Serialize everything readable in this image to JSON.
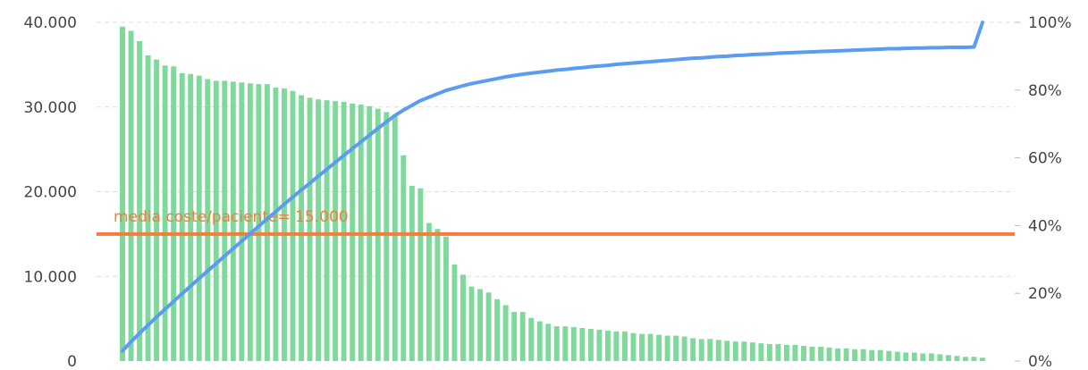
{
  "chart_data": {
    "type": "bar",
    "title": "",
    "xlabel": "",
    "ylabel": "",
    "ylim": [
      0,
      40000
    ],
    "y2lim": [
      0,
      100
    ],
    "grid": "horizontal dashed",
    "y_ticks": [
      "0",
      "10.000",
      "20.000",
      "30.000",
      "40.000"
    ],
    "y2_ticks": [
      "0%",
      "20%",
      "40%",
      "60%",
      "80%",
      "100%"
    ],
    "series": [
      {
        "type": "bar",
        "axis": "left",
        "color": "#7fd99a",
        "values": [
          39500,
          39000,
          37800,
          36100,
          35600,
          34900,
          34800,
          34000,
          33900,
          33700,
          33300,
          33100,
          33100,
          33000,
          32900,
          32800,
          32700,
          32700,
          32300,
          32200,
          31900,
          31400,
          31100,
          30900,
          30800,
          30700,
          30600,
          30400,
          30300,
          30100,
          29800,
          29400,
          29100,
          24300,
          20700,
          20400,
          16300,
          15600,
          14700,
          11400,
          10200,
          8800,
          8500,
          8100,
          7300,
          6600,
          5800,
          5800,
          5100,
          4700,
          4400,
          4100,
          4100,
          4000,
          3900,
          3800,
          3700,
          3600,
          3500,
          3500,
          3300,
          3200,
          3200,
          3100,
          3000,
          3000,
          2900,
          2700,
          2600,
          2600,
          2500,
          2400,
          2300,
          2300,
          2200,
          2100,
          2000,
          2000,
          1900,
          1900,
          1800,
          1700,
          1700,
          1600,
          1500,
          1500,
          1400,
          1400,
          1300,
          1300,
          1200,
          1100,
          1000,
          1000,
          900,
          900,
          800,
          700,
          600,
          500,
          500,
          400
        ]
      },
      {
        "type": "line",
        "axis": "right",
        "color": "#5a9cf0",
        "values": [
          3.0,
          5.7,
          8.2,
          10.6,
          13.0,
          15.3,
          17.6,
          19.9,
          22.1,
          24.4,
          26.6,
          28.8,
          31.0,
          33.2,
          35.4,
          37.6,
          39.8,
          42.0,
          44.1,
          46.3,
          48.4,
          50.5,
          52.5,
          54.6,
          56.6,
          58.7,
          60.7,
          62.7,
          64.7,
          66.7,
          68.7,
          70.6,
          72.5,
          74.1,
          75.5,
          76.9,
          77.9,
          78.9,
          79.9,
          80.6,
          81.3,
          81.9,
          82.4,
          82.9,
          83.4,
          83.9,
          84.3,
          84.7,
          85.0,
          85.3,
          85.6,
          85.9,
          86.1,
          86.4,
          86.6,
          86.9,
          87.1,
          87.3,
          87.6,
          87.8,
          88.0,
          88.2,
          88.4,
          88.6,
          88.8,
          89.0,
          89.2,
          89.4,
          89.5,
          89.7,
          89.9,
          90.0,
          90.2,
          90.3,
          90.5,
          90.6,
          90.7,
          90.9,
          91.0,
          91.1,
          91.2,
          91.3,
          91.4,
          91.5,
          91.6,
          91.7,
          91.8,
          91.9,
          92.0,
          92.1,
          92.2,
          92.2,
          92.3,
          92.4,
          92.4,
          92.5,
          92.5,
          92.6,
          92.6,
          92.6,
          92.7,
          100.0
        ]
      }
    ],
    "reference_line": {
      "axis": "left",
      "value": 15000,
      "color": "#f47c3c",
      "label": "media coste/paciente= 15.000"
    }
  }
}
